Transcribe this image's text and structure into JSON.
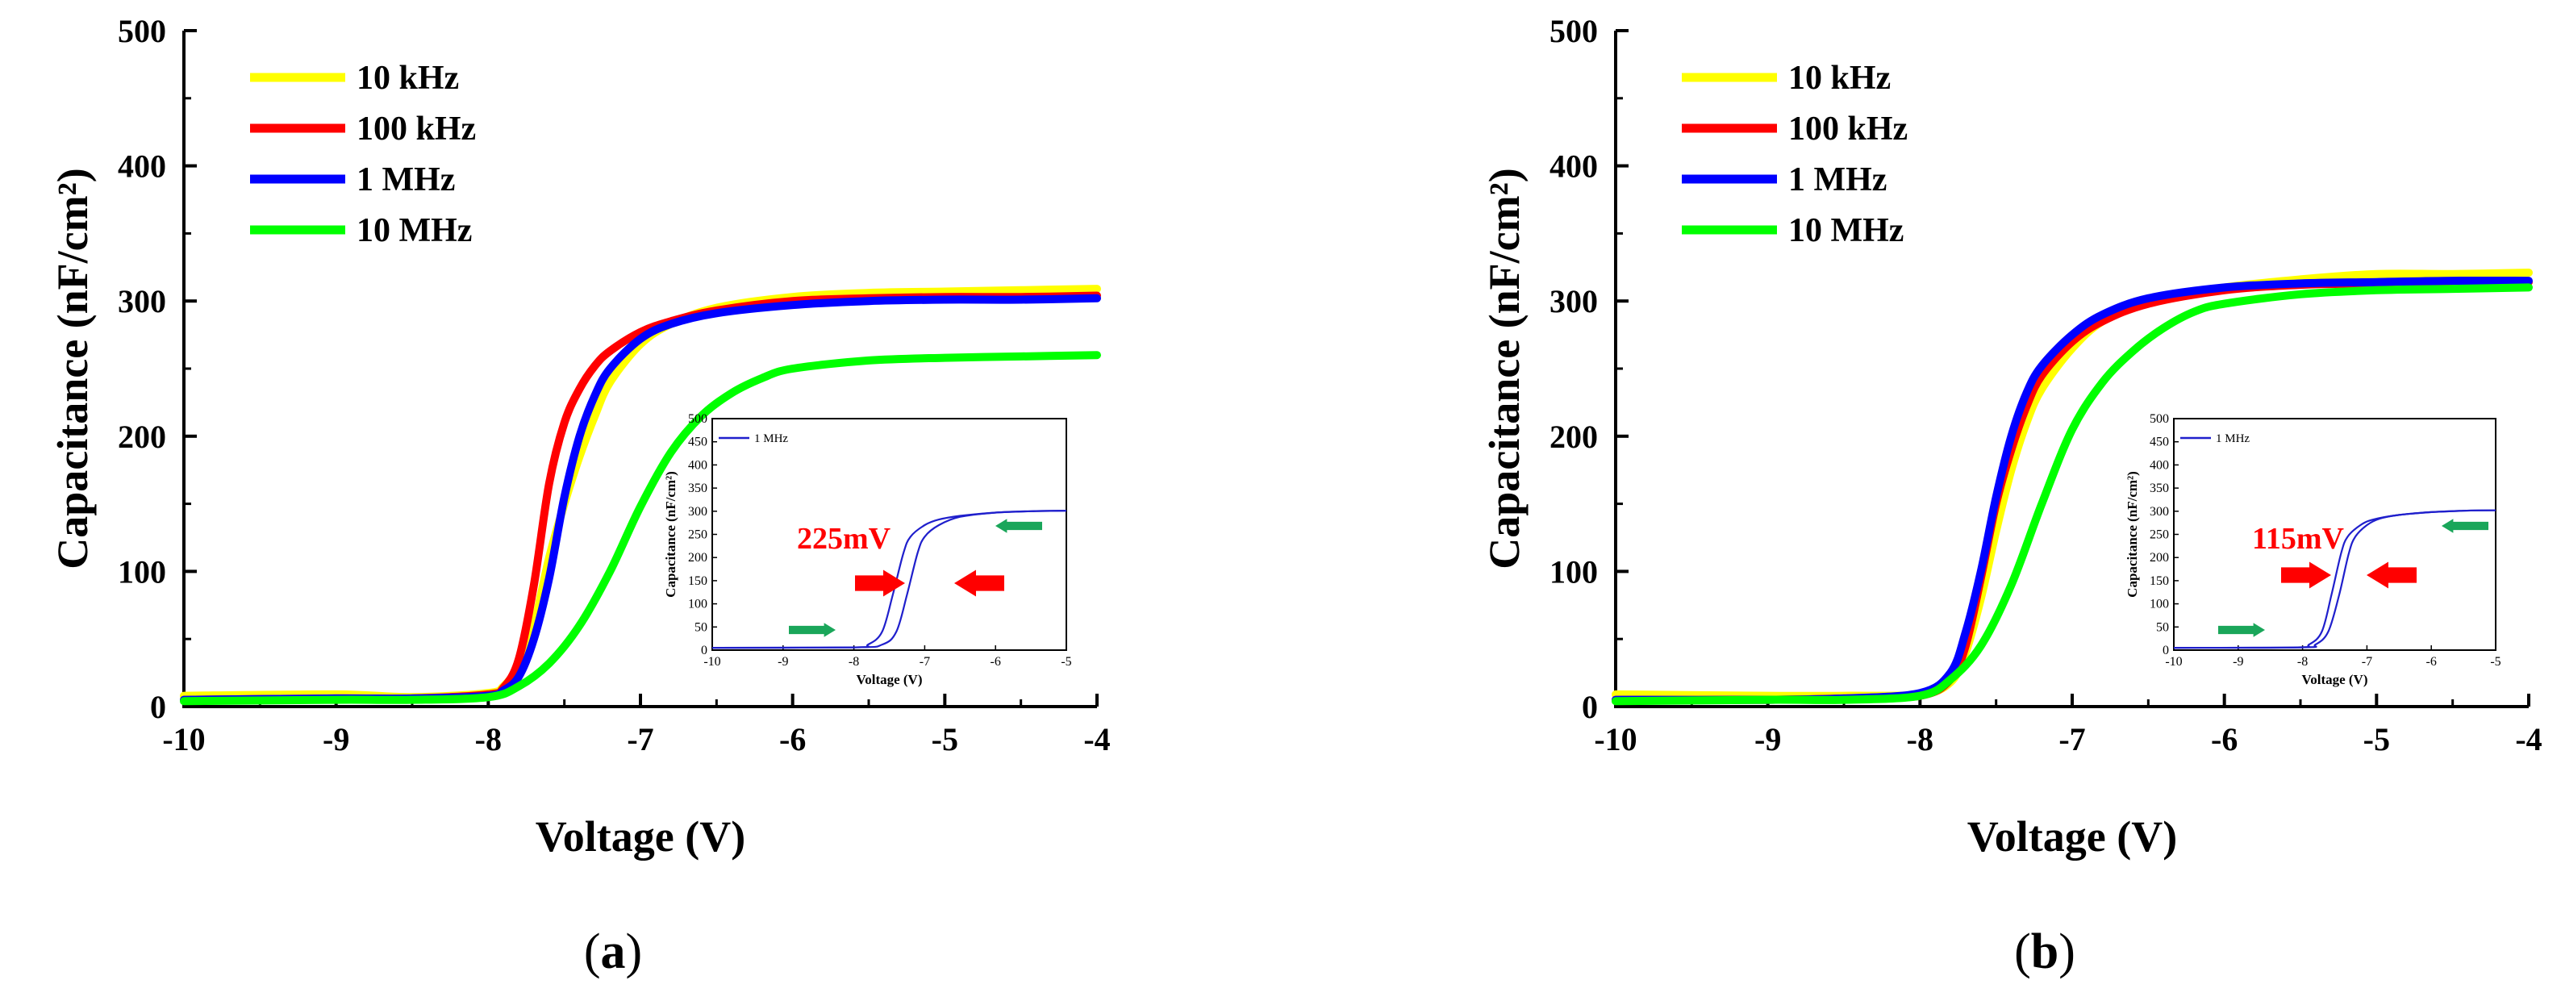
{
  "chart_data": [
    {
      "type": "line",
      "panel_label": "a",
      "xlabel": "Voltage (V)",
      "ylabel": "Capacitance (nF/cm²)",
      "xlim": [
        -10,
        -4
      ],
      "ylim": [
        0,
        500
      ],
      "xticks": [
        "-10",
        "-9",
        "-8",
        "-7",
        "-6",
        "-5",
        "-4"
      ],
      "yticks": [
        "0",
        "100",
        "200",
        "300",
        "400",
        "500"
      ],
      "legend_position": "top-left",
      "series": [
        {
          "name": "10 kHz",
          "color": "#ffff00",
          "x": [
            -10,
            -9,
            -8.5,
            -8,
            -7.9,
            -7.8,
            -7.7,
            -7.6,
            -7.5,
            -7.4,
            -7.3,
            -7.2,
            -7.0,
            -6.8,
            -6.5,
            -6.0,
            -5.5,
            -5.0,
            -4.5,
            -4.0
          ],
          "y": [
            8,
            9,
            7,
            10,
            15,
            30,
            60,
            110,
            150,
            185,
            215,
            240,
            268,
            283,
            295,
            303,
            306,
            307,
            308,
            309
          ]
        },
        {
          "name": "100 kHz",
          "color": "#ff0000",
          "x": [
            -10,
            -9,
            -8.5,
            -8,
            -7.9,
            -7.8,
            -7.7,
            -7.6,
            -7.5,
            -7.4,
            -7.3,
            -7.2,
            -7.0,
            -6.8,
            -6.5,
            -6.0,
            -5.5,
            -5.0,
            -4.5,
            -4.0
          ],
          "y": [
            5,
            6,
            6,
            9,
            14,
            35,
            90,
            165,
            210,
            235,
            252,
            263,
            277,
            285,
            293,
            300,
            302,
            303,
            303,
            304
          ]
        },
        {
          "name": "1 MHz",
          "color": "#0000ff",
          "x": [
            -10,
            -9,
            -8.5,
            -8,
            -7.9,
            -7.8,
            -7.7,
            -7.6,
            -7.5,
            -7.4,
            -7.3,
            -7.2,
            -7.0,
            -6.8,
            -6.5,
            -6.0,
            -5.5,
            -5.0,
            -4.5,
            -4.0
          ],
          "y": [
            5,
            6,
            6,
            8,
            12,
            22,
            50,
            95,
            155,
            200,
            230,
            250,
            272,
            283,
            291,
            297,
            300,
            301,
            301,
            302
          ]
        },
        {
          "name": "10 MHz",
          "color": "#00ff00",
          "x": [
            -10,
            -9,
            -8.5,
            -8,
            -7.8,
            -7.6,
            -7.4,
            -7.2,
            -7.0,
            -6.8,
            -6.6,
            -6.4,
            -6.2,
            -6.0,
            -5.5,
            -5.0,
            -4.5,
            -4.0
          ],
          "y": [
            4,
            5,
            5,
            7,
            15,
            32,
            60,
            100,
            148,
            188,
            215,
            232,
            243,
            250,
            256,
            258,
            259,
            260
          ]
        }
      ],
      "inset": {
        "xlim": [
          -10,
          -5
        ],
        "ylim": [
          0,
          500
        ],
        "xticks": [
          "-10",
          "-9",
          "-8",
          "-7",
          "-6",
          "-5"
        ],
        "yticks": [
          "0",
          "50",
          "100",
          "150",
          "200",
          "250",
          "300",
          "350",
          "400",
          "450",
          "500"
        ],
        "xlabel": "Voltage (V)",
        "ylabel": "Capacitance (nF/cm²)",
        "legend": "1 MHz",
        "color": "#1f1fcc",
        "annotation": "225mV",
        "forward": {
          "x": [
            -10,
            -8,
            -7.8,
            -7.6,
            -7.45,
            -7.3,
            -7.2,
            -7.0,
            -6.8,
            -6.5,
            -6.0,
            -5.5,
            -5.0
          ],
          "y": [
            5,
            6,
            12,
            40,
            120,
            210,
            245,
            270,
            282,
            290,
            297,
            300,
            301
          ]
        },
        "reverse": {
          "x": [
            -10,
            -8,
            -7.6,
            -7.4,
            -7.25,
            -7.1,
            -7.0,
            -6.8,
            -6.5,
            -6.0,
            -5.5,
            -5.0
          ],
          "y": [
            5,
            6,
            12,
            40,
            120,
            210,
            245,
            270,
            288,
            297,
            300,
            301
          ]
        }
      }
    },
    {
      "type": "line",
      "panel_label": "b",
      "xlabel": "Voltage (V)",
      "ylabel": "Capacitance (nF/cm²)",
      "xlim": [
        -10,
        -4
      ],
      "ylim": [
        0,
        500
      ],
      "xticks": [
        "-10",
        "-9",
        "-8",
        "-7",
        "-6",
        "-5",
        "-4"
      ],
      "yticks": [
        "0",
        "100",
        "200",
        "300",
        "400",
        "500"
      ],
      "legend_position": "top-left",
      "series": [
        {
          "name": "10 kHz",
          "color": "#ffff00",
          "x": [
            -10,
            -9,
            -8.5,
            -8,
            -7.8,
            -7.7,
            -7.6,
            -7.5,
            -7.4,
            -7.3,
            -7.2,
            -7.0,
            -6.8,
            -6.5,
            -6.0,
            -5.5,
            -5.0,
            -4.5,
            -4.0
          ],
          "y": [
            9,
            8,
            8,
            9,
            18,
            40,
            80,
            130,
            175,
            210,
            235,
            265,
            285,
            300,
            310,
            316,
            320,
            320,
            321
          ]
        },
        {
          "name": "100 kHz",
          "color": "#ff0000",
          "x": [
            -10,
            -9,
            -8.5,
            -8,
            -7.8,
            -7.7,
            -7.6,
            -7.5,
            -7.4,
            -7.3,
            -7.2,
            -7.0,
            -6.8,
            -6.5,
            -6.0,
            -5.5,
            -5.0,
            -4.5,
            -4.0
          ],
          "y": [
            5,
            5,
            6,
            8,
            20,
            45,
            95,
            150,
            190,
            222,
            245,
            270,
            285,
            298,
            308,
            312,
            313,
            314,
            314
          ]
        },
        {
          "name": "1 MHz",
          "color": "#0000ff",
          "x": [
            -10,
            -9,
            -8.5,
            -8,
            -7.8,
            -7.7,
            -7.6,
            -7.5,
            -7.4,
            -7.3,
            -7.2,
            -7.0,
            -6.8,
            -6.5,
            -6.0,
            -5.5,
            -5.0,
            -4.5,
            -4.0
          ],
          "y": [
            5,
            5,
            6,
            10,
            25,
            55,
            100,
            155,
            200,
            232,
            252,
            275,
            290,
            302,
            310,
            313,
            314,
            315,
            315
          ]
        },
        {
          "name": "10 MHz",
          "color": "#00ff00",
          "x": [
            -10,
            -9,
            -8.5,
            -8,
            -7.8,
            -7.6,
            -7.4,
            -7.2,
            -7.0,
            -6.8,
            -6.6,
            -6.4,
            -6.2,
            -6.0,
            -5.5,
            -5.0,
            -4.5,
            -4.0
          ],
          "y": [
            4,
            5,
            5,
            8,
            20,
            45,
            90,
            150,
            205,
            240,
            263,
            280,
            292,
            298,
            305,
            308,
            309,
            310
          ]
        }
      ],
      "inset": {
        "xlim": [
          -10,
          -5
        ],
        "ylim": [
          0,
          500
        ],
        "xticks": [
          "-10",
          "-9",
          "-8",
          "-7",
          "-6",
          "-5"
        ],
        "yticks": [
          "0",
          "50",
          "100",
          "150",
          "200",
          "250",
          "300",
          "350",
          "400",
          "450",
          "500"
        ],
        "xlabel": "Voltage (V)",
        "ylabel": "Capacitance (nF/cm²)",
        "legend": "1 MHz",
        "color": "#1f1fcc",
        "annotation": "115mV",
        "forward": {
          "x": [
            -10,
            -8.1,
            -7.9,
            -7.7,
            -7.55,
            -7.4,
            -7.3,
            -7.1,
            -6.9,
            -6.5,
            -6.0,
            -5.5,
            -5.0
          ],
          "y": [
            5,
            6,
            12,
            40,
            120,
            210,
            245,
            270,
            282,
            292,
            298,
            301,
            302
          ]
        },
        "reverse": {
          "x": [
            -10,
            -8.0,
            -7.8,
            -7.6,
            -7.43,
            -7.28,
            -7.18,
            -7.0,
            -6.8,
            -6.5,
            -6.0,
            -5.5,
            -5.0
          ],
          "y": [
            5,
            6,
            12,
            40,
            120,
            210,
            245,
            270,
            284,
            292,
            298,
            301,
            302
          ]
        }
      }
    }
  ]
}
